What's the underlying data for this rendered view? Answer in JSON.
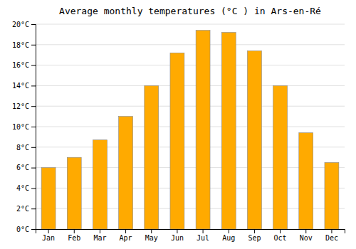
{
  "chart_data": {
    "type": "bar",
    "title": "Average monthly temperatures (°C ) in Ars-en-Ré",
    "categories": [
      "Jan",
      "Feb",
      "Mar",
      "Apr",
      "May",
      "Jun",
      "Jul",
      "Aug",
      "Sep",
      "Oct",
      "Nov",
      "Dec"
    ],
    "values": [
      6.0,
      7.0,
      8.7,
      11.0,
      14.0,
      17.2,
      19.4,
      19.2,
      17.4,
      14.0,
      9.4,
      6.5
    ],
    "color": "#FFAA00",
    "ylim": [
      0,
      20
    ],
    "yticks": [
      {
        "value": 0,
        "label": "0°C"
      },
      {
        "value": 2,
        "label": "2°C"
      },
      {
        "value": 4,
        "label": "4°C"
      },
      {
        "value": 6,
        "label": "6°C"
      },
      {
        "value": 8,
        "label": "8°C"
      },
      {
        "value": 10,
        "label": "10°C"
      },
      {
        "value": 12,
        "label": "12°C"
      },
      {
        "value": 14,
        "label": "14°C"
      },
      {
        "value": 16,
        "label": "16°C"
      },
      {
        "value": 18,
        "label": "18°C"
      },
      {
        "value": 20,
        "label": "20°C"
      }
    ],
    "grid": true
  }
}
